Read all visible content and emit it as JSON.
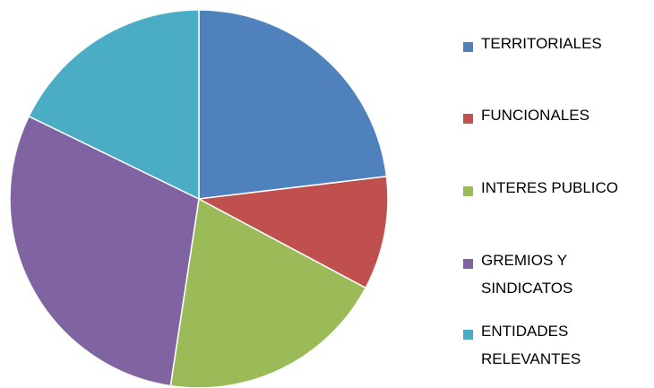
{
  "chart_data": {
    "type": "pie",
    "categories": [
      "TERRITORIALES",
      "FUNCIONALES",
      "INTERES PUBLICO",
      "GREMIOS Y SINDICATOS",
      "ENTIDADES RELEVANTES"
    ],
    "values": [
      23.1,
      9.7,
      19.6,
      29.8,
      17.8
    ],
    "colors": [
      "#4f81bd",
      "#c0504d",
      "#9bbb59",
      "#8064a2",
      "#4bacc6"
    ],
    "legend": "right"
  }
}
